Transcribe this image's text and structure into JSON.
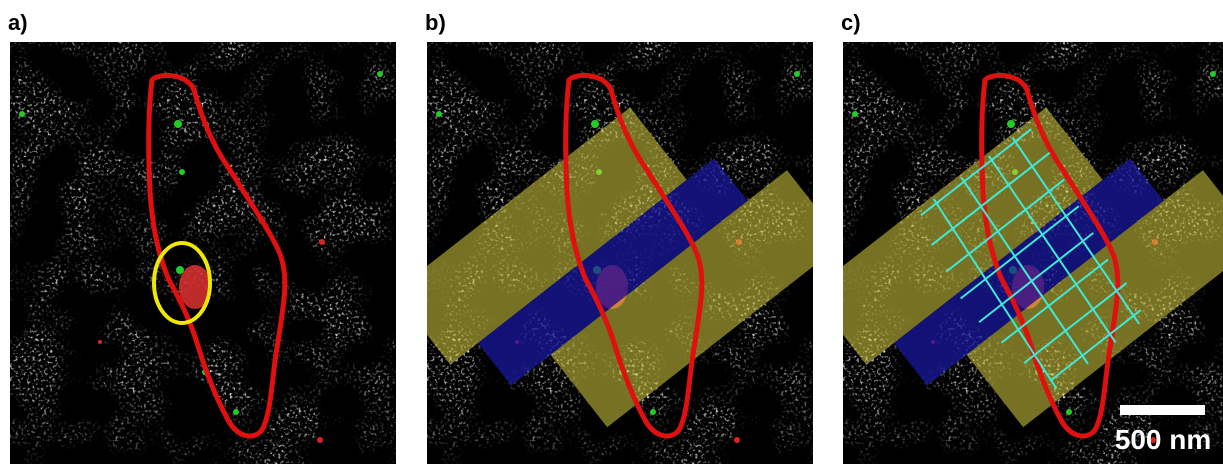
{
  "panels": [
    {
      "label": "a)"
    },
    {
      "label": "b)"
    },
    {
      "label": "c)"
    }
  ],
  "scale_bar": {
    "label": "500 nm"
  }
}
